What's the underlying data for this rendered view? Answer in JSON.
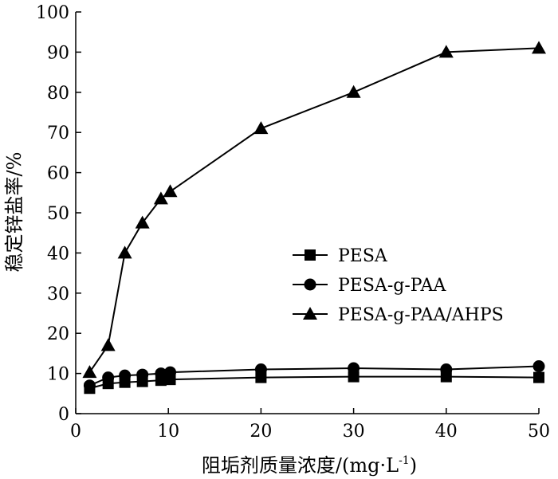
{
  "chart_data": {
    "type": "line",
    "xlabel": "阻垢剂质量浓度/(mg·L",
    "xlabel_sup": "-1",
    "xlabel_tail": ")",
    "ylabel": "稳定锌盐率/%",
    "xlim": [
      0,
      50
    ],
    "ylim": [
      0,
      100
    ],
    "xticks": [
      0,
      10,
      20,
      30,
      40,
      50
    ],
    "yticks": [
      0,
      10,
      20,
      30,
      40,
      50,
      60,
      70,
      80,
      90,
      100
    ],
    "grid": false,
    "legend_position": "center-right",
    "series": [
      {
        "name": "PESA",
        "marker": "square",
        "x": [
          1.5,
          3.5,
          5.3,
          7.2,
          9.2,
          10.2,
          20,
          30,
          40,
          50
        ],
        "y": [
          6.3,
          7.5,
          7.8,
          8.0,
          8.3,
          8.5,
          9.0,
          9.2,
          9.2,
          9.0
        ]
      },
      {
        "name": "PESA-g-PAA",
        "marker": "circle",
        "x": [
          1.5,
          3.5,
          5.3,
          7.2,
          9.2,
          10.2,
          20,
          30,
          40,
          50
        ],
        "y": [
          7.0,
          9.0,
          9.5,
          9.7,
          10.0,
          10.3,
          11.0,
          11.3,
          11.0,
          11.8
        ]
      },
      {
        "name": "PESA-g-PAA/AHPS",
        "marker": "triangle",
        "x": [
          1.5,
          3.5,
          5.3,
          7.2,
          9.2,
          10.2,
          20,
          30,
          40,
          50
        ],
        "y": [
          10.3,
          17.0,
          40.0,
          47.5,
          53.5,
          55.3,
          71.0,
          80.0,
          90.0,
          91.0
        ]
      }
    ]
  }
}
